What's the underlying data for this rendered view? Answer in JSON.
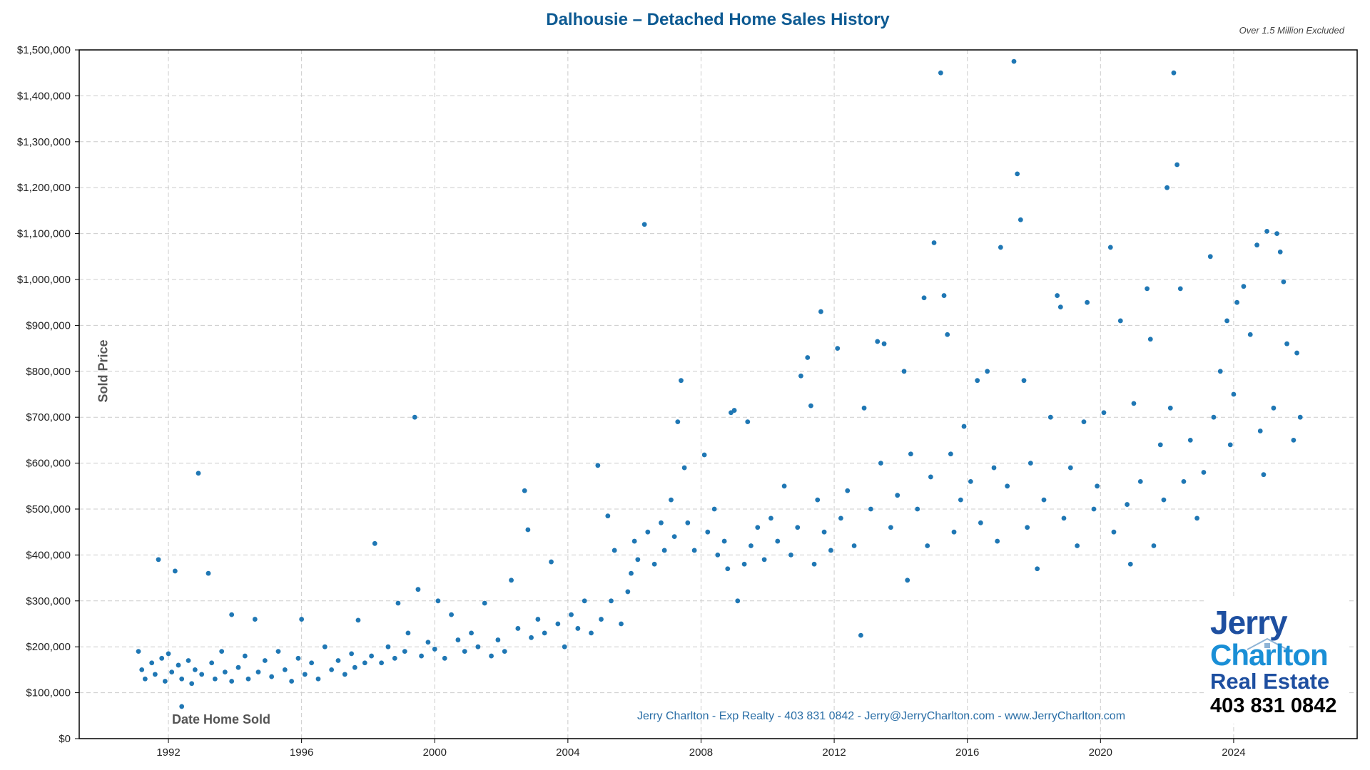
{
  "chart_data": {
    "type": "scatter",
    "title": "Dalhousie – Detached Home Sales History",
    "subtitle": "Over 1.5 Million Excluded",
    "xlabel": "Date Home Sold",
    "ylabel": "Sold Price",
    "xlim": [
      1989.32,
      2027.71
    ],
    "ylim": [
      0,
      1500000
    ],
    "grid": true,
    "point_color": "#1f77b4",
    "x_ticks": [
      1992,
      1996,
      2000,
      2004,
      2008,
      2012,
      2016,
      2020,
      2024
    ],
    "x_tick_labels": [
      "1992",
      "1996",
      "2000",
      "2004",
      "2008",
      "2012",
      "2016",
      "2020",
      "2024"
    ],
    "y_ticks": [
      0,
      100000,
      200000,
      300000,
      400000,
      500000,
      600000,
      700000,
      800000,
      900000,
      1000000,
      1100000,
      1200000,
      1300000,
      1400000,
      1500000
    ],
    "y_tick_labels": [
      "$0",
      "$100,000",
      "$200,000",
      "$300,000",
      "$400,000",
      "$500,000",
      "$600,000",
      "$700,000",
      "$800,000",
      "$900,000",
      "$1,000,000",
      "$1,100,000",
      "$1,200,000",
      "$1,300,000",
      "$1,400,000",
      "$1,500,000"
    ],
    "points": [
      [
        1991.1,
        190000
      ],
      [
        1991.2,
        150000
      ],
      [
        1991.3,
        130000
      ],
      [
        1991.5,
        165000
      ],
      [
        1991.6,
        140000
      ],
      [
        1991.8,
        175000
      ],
      [
        1991.9,
        125000
      ],
      [
        1991.7,
        390000
      ],
      [
        1992.0,
        185000
      ],
      [
        1992.1,
        145000
      ],
      [
        1992.2,
        365000
      ],
      [
        1992.3,
        160000
      ],
      [
        1992.4,
        130000
      ],
      [
        1992.4,
        70000
      ],
      [
        1992.6,
        170000
      ],
      [
        1992.7,
        120000
      ],
      [
        1992.8,
        150000
      ],
      [
        1992.9,
        578000
      ],
      [
        1993.0,
        140000
      ],
      [
        1993.2,
        360000
      ],
      [
        1993.3,
        165000
      ],
      [
        1993.4,
        130000
      ],
      [
        1993.6,
        190000
      ],
      [
        1993.7,
        145000
      ],
      [
        1993.9,
        270000
      ],
      [
        1993.9,
        125000
      ],
      [
        1994.1,
        155000
      ],
      [
        1994.3,
        180000
      ],
      [
        1994.4,
        130000
      ],
      [
        1994.6,
        260000
      ],
      [
        1994.7,
        145000
      ],
      [
        1994.9,
        170000
      ],
      [
        1995.1,
        135000
      ],
      [
        1995.3,
        190000
      ],
      [
        1995.5,
        150000
      ],
      [
        1995.7,
        125000
      ],
      [
        1995.9,
        175000
      ],
      [
        1996.0,
        260000
      ],
      [
        1996.1,
        140000
      ],
      [
        1996.3,
        165000
      ],
      [
        1996.5,
        130000
      ],
      [
        1996.7,
        200000
      ],
      [
        1996.9,
        150000
      ],
      [
        1997.1,
        170000
      ],
      [
        1997.3,
        140000
      ],
      [
        1997.5,
        185000
      ],
      [
        1997.6,
        155000
      ],
      [
        1997.7,
        258000
      ],
      [
        1997.9,
        165000
      ],
      [
        1998.1,
        180000
      ],
      [
        1998.2,
        425000
      ],
      [
        1998.4,
        165000
      ],
      [
        1998.6,
        200000
      ],
      [
        1998.8,
        175000
      ],
      [
        1998.9,
        295000
      ],
      [
        1999.1,
        190000
      ],
      [
        1999.2,
        230000
      ],
      [
        1999.4,
        700000
      ],
      [
        1999.5,
        325000
      ],
      [
        1999.6,
        180000
      ],
      [
        1999.8,
        210000
      ],
      [
        2000.0,
        195000
      ],
      [
        2000.1,
        300000
      ],
      [
        2000.3,
        175000
      ],
      [
        2000.5,
        270000
      ],
      [
        2000.7,
        215000
      ],
      [
        2000.9,
        190000
      ],
      [
        2001.1,
        230000
      ],
      [
        2001.3,
        200000
      ],
      [
        2001.5,
        295000
      ],
      [
        2001.7,
        180000
      ],
      [
        2001.9,
        215000
      ],
      [
        2002.1,
        190000
      ],
      [
        2002.3,
        345000
      ],
      [
        2002.5,
        240000
      ],
      [
        2002.7,
        540000
      ],
      [
        2002.8,
        455000
      ],
      [
        2002.9,
        220000
      ],
      [
        2003.1,
        260000
      ],
      [
        2003.3,
        230000
      ],
      [
        2003.5,
        385000
      ],
      [
        2003.7,
        250000
      ],
      [
        2003.9,
        200000
      ],
      [
        2004.1,
        270000
      ],
      [
        2004.3,
        240000
      ],
      [
        2004.5,
        300000
      ],
      [
        2004.7,
        230000
      ],
      [
        2004.9,
        595000
      ],
      [
        2005.0,
        260000
      ],
      [
        2005.2,
        485000
      ],
      [
        2005.3,
        300000
      ],
      [
        2005.4,
        410000
      ],
      [
        2005.6,
        250000
      ],
      [
        2005.8,
        320000
      ],
      [
        2005.9,
        360000
      ],
      [
        2006.0,
        430000
      ],
      [
        2006.1,
        390000
      ],
      [
        2006.3,
        1120000
      ],
      [
        2006.4,
        450000
      ],
      [
        2006.6,
        380000
      ],
      [
        2006.8,
        470000
      ],
      [
        2006.9,
        410000
      ],
      [
        2007.1,
        520000
      ],
      [
        2007.2,
        440000
      ],
      [
        2007.3,
        690000
      ],
      [
        2007.4,
        780000
      ],
      [
        2007.5,
        590000
      ],
      [
        2007.6,
        470000
      ],
      [
        2007.8,
        410000
      ],
      [
        2008.1,
        618000
      ],
      [
        2008.2,
        450000
      ],
      [
        2008.4,
        500000
      ],
      [
        2008.5,
        400000
      ],
      [
        2008.7,
        430000
      ],
      [
        2008.8,
        370000
      ],
      [
        2008.9,
        710000
      ],
      [
        2009.0,
        715000
      ],
      [
        2009.1,
        300000
      ],
      [
        2009.3,
        380000
      ],
      [
        2009.4,
        690000
      ],
      [
        2009.5,
        420000
      ],
      [
        2009.7,
        460000
      ],
      [
        2009.9,
        390000
      ],
      [
        2010.1,
        480000
      ],
      [
        2010.3,
        430000
      ],
      [
        2010.5,
        550000
      ],
      [
        2010.7,
        400000
      ],
      [
        2010.9,
        460000
      ],
      [
        2011.0,
        790000
      ],
      [
        2011.2,
        830000
      ],
      [
        2011.3,
        725000
      ],
      [
        2011.4,
        380000
      ],
      [
        2011.5,
        520000
      ],
      [
        2011.6,
        930000
      ],
      [
        2011.7,
        450000
      ],
      [
        2011.9,
        410000
      ],
      [
        2012.1,
        850000
      ],
      [
        2012.2,
        480000
      ],
      [
        2012.4,
        540000
      ],
      [
        2012.6,
        420000
      ],
      [
        2012.8,
        225000
      ],
      [
        2012.9,
        720000
      ],
      [
        2013.1,
        500000
      ],
      [
        2013.3,
        865000
      ],
      [
        2013.4,
        600000
      ],
      [
        2013.5,
        860000
      ],
      [
        2013.7,
        460000
      ],
      [
        2013.9,
        530000
      ],
      [
        2014.1,
        800000
      ],
      [
        2014.2,
        345000
      ],
      [
        2014.3,
        620000
      ],
      [
        2014.5,
        500000
      ],
      [
        2014.7,
        960000
      ],
      [
        2014.8,
        420000
      ],
      [
        2014.9,
        570000
      ],
      [
        2015.0,
        1080000
      ],
      [
        2015.2,
        1450000
      ],
      [
        2015.3,
        965000
      ],
      [
        2015.4,
        880000
      ],
      [
        2015.5,
        620000
      ],
      [
        2015.6,
        450000
      ],
      [
        2015.8,
        520000
      ],
      [
        2015.9,
        680000
      ],
      [
        2016.1,
        560000
      ],
      [
        2016.3,
        780000
      ],
      [
        2016.4,
        470000
      ],
      [
        2016.6,
        800000
      ],
      [
        2016.8,
        590000
      ],
      [
        2016.9,
        430000
      ],
      [
        2017.0,
        1070000
      ],
      [
        2017.2,
        550000
      ],
      [
        2017.4,
        1475000
      ],
      [
        2017.5,
        1230000
      ],
      [
        2017.6,
        1130000
      ],
      [
        2017.7,
        780000
      ],
      [
        2017.8,
        460000
      ],
      [
        2017.9,
        600000
      ],
      [
        2018.1,
        370000
      ],
      [
        2018.3,
        520000
      ],
      [
        2018.5,
        700000
      ],
      [
        2018.7,
        965000
      ],
      [
        2018.8,
        940000
      ],
      [
        2018.9,
        480000
      ],
      [
        2019.1,
        590000
      ],
      [
        2019.3,
        420000
      ],
      [
        2019.5,
        690000
      ],
      [
        2019.6,
        950000
      ],
      [
        2019.8,
        500000
      ],
      [
        2019.9,
        550000
      ],
      [
        2020.1,
        710000
      ],
      [
        2020.3,
        1070000
      ],
      [
        2020.4,
        450000
      ],
      [
        2020.6,
        910000
      ],
      [
        2020.8,
        510000
      ],
      [
        2020.9,
        380000
      ],
      [
        2021.0,
        730000
      ],
      [
        2021.2,
        560000
      ],
      [
        2021.4,
        980000
      ],
      [
        2021.5,
        870000
      ],
      [
        2021.6,
        420000
      ],
      [
        2021.8,
        640000
      ],
      [
        2021.9,
        520000
      ],
      [
        2022.0,
        1200000
      ],
      [
        2022.1,
        720000
      ],
      [
        2022.2,
        1450000
      ],
      [
        2022.3,
        1250000
      ],
      [
        2022.4,
        980000
      ],
      [
        2022.5,
        560000
      ],
      [
        2022.7,
        650000
      ],
      [
        2022.9,
        480000
      ],
      [
        2023.1,
        580000
      ],
      [
        2023.3,
        1050000
      ],
      [
        2023.4,
        700000
      ],
      [
        2023.6,
        800000
      ],
      [
        2023.8,
        910000
      ],
      [
        2023.9,
        640000
      ],
      [
        2024.0,
        750000
      ],
      [
        2024.1,
        950000
      ],
      [
        2024.3,
        985000
      ],
      [
        2024.5,
        880000
      ],
      [
        2024.7,
        1075000
      ],
      [
        2024.8,
        670000
      ],
      [
        2024.9,
        575000
      ],
      [
        2025.0,
        1105000
      ],
      [
        2025.2,
        720000
      ],
      [
        2025.3,
        1100000
      ],
      [
        2025.4,
        1060000
      ],
      [
        2025.5,
        995000
      ],
      [
        2025.6,
        860000
      ],
      [
        2025.8,
        650000
      ],
      [
        2025.9,
        840000
      ],
      [
        2026.0,
        700000
      ]
    ]
  },
  "footer": "Jerry Charlton - Exp Realty - 403 831 0842 - Jerry@JerryCharlton.com - www.JerryCharlton.com",
  "logo": {
    "line1": "Jerry",
    "line2": "Charlton",
    "line3": "Real Estate",
    "phone": "403 831 0842"
  }
}
